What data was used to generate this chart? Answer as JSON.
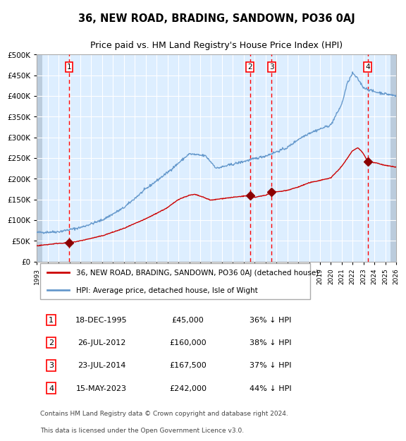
{
  "title": "36, NEW ROAD, BRADING, SANDOWN, PO36 0AJ",
  "subtitle": "Price paid vs. HM Land Registry's House Price Index (HPI)",
  "sales": [
    {
      "num": 1,
      "date_num": 1995.97,
      "price": 45000,
      "label": "18-DEC-1995",
      "pct": "36% ↓ HPI"
    },
    {
      "num": 2,
      "date_num": 2012.57,
      "price": 160000,
      "label": "26-JUL-2012",
      "pct": "38% ↓ HPI"
    },
    {
      "num": 3,
      "date_num": 2014.56,
      "price": 167500,
      "label": "23-JUL-2014",
      "pct": "37% ↓ HPI"
    },
    {
      "num": 4,
      "date_num": 2023.37,
      "price": 242000,
      "label": "15-MAY-2023",
      "pct": "44% ↓ HPI"
    }
  ],
  "legend_entries": [
    "36, NEW ROAD, BRADING, SANDOWN, PO36 0AJ (detached house)",
    "HPI: Average price, detached house, Isle of Wight"
  ],
  "footer": "Contains HM Land Registry data © Crown copyright and database right 2024.\nThis data is licensed under the Open Government Licence v3.0.",
  "xmin": 1993.0,
  "xmax": 2026.0,
  "ymin": 0,
  "ymax": 500000,
  "hpi_color": "#6699cc",
  "price_color": "#cc0000",
  "bg_color": "#ddeeff",
  "grid_color": "#ffffff",
  "hatch_color": "#bbccdd"
}
